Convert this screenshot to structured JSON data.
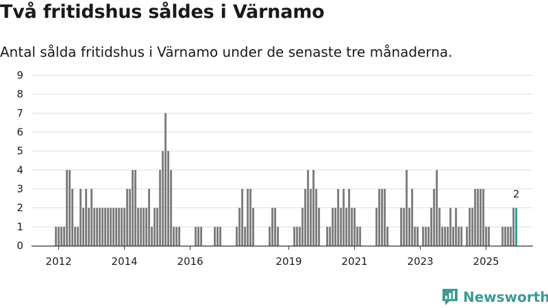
{
  "header": {
    "title": "Två fritidshus såldes i Värnamo",
    "subtitle": "Antal sålda fritidshus i Värnamo under de senaste tre månaderna."
  },
  "brand": {
    "name": "Newsworthy"
  },
  "colors": {
    "bar": "#7a7a7a",
    "highlight": "#2a9d8f",
    "grid": "#dddddd",
    "axis": "#333333",
    "brand": "#3d9b92"
  },
  "chart_data": {
    "type": "bar",
    "title": "",
    "xlabel": "",
    "ylabel": "",
    "ylim": [
      0,
      9
    ],
    "y_ticks": [
      "0",
      "1",
      "2",
      "3",
      "4",
      "5",
      "6",
      "7",
      "8",
      "9"
    ],
    "grid": true,
    "start_month": "2011-12",
    "x_ticks": [
      "2012",
      "2014",
      "2016",
      "2019",
      "2021",
      "2023",
      "2025"
    ],
    "values": [
      1,
      1,
      1,
      1,
      4,
      4,
      3,
      1,
      1,
      3,
      2,
      3,
      2,
      3,
      2,
      2,
      2,
      2,
      2,
      2,
      2,
      2,
      2,
      2,
      2,
      2,
      3,
      3,
      4,
      4,
      2,
      2,
      2,
      2,
      3,
      1,
      2,
      2,
      4,
      5,
      7,
      5,
      4,
      1,
      1,
      1,
      0,
      0,
      0,
      0,
      0,
      1,
      1,
      1,
      0,
      0,
      0,
      0,
      1,
      1,
      1,
      0,
      0,
      0,
      0,
      0,
      1,
      2,
      3,
      1,
      3,
      3,
      2,
      0,
      0,
      0,
      0,
      0,
      1,
      2,
      2,
      1,
      0,
      0,
      0,
      0,
      0,
      1,
      1,
      1,
      2,
      3,
      4,
      3,
      4,
      3,
      2,
      0,
      0,
      1,
      1,
      2,
      2,
      3,
      2,
      3,
      2,
      3,
      2,
      2,
      1,
      1,
      0,
      0,
      0,
      0,
      0,
      2,
      3,
      3,
      3,
      1,
      0,
      0,
      0,
      0,
      2,
      2,
      4,
      2,
      3,
      1,
      1,
      0,
      1,
      1,
      1,
      2,
      3,
      4,
      2,
      1,
      1,
      1,
      2,
      1,
      2,
      1,
      1,
      0,
      1,
      2,
      2,
      3,
      3,
      3,
      3,
      1,
      1,
      0,
      0,
      0,
      0,
      1,
      1,
      1,
      1,
      2,
      2
    ],
    "highlight_last": true,
    "annotations": [
      {
        "text": "2",
        "target": "last"
      }
    ]
  }
}
